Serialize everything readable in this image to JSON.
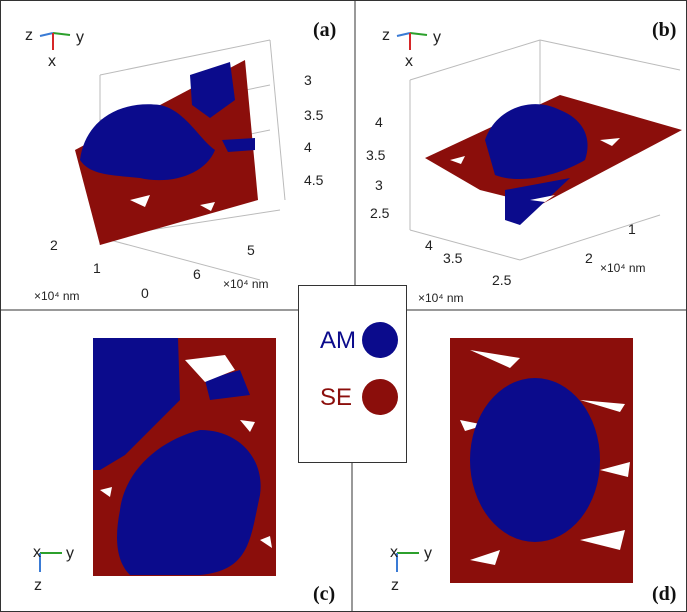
{
  "panels": [
    {
      "label": "(a)",
      "triad": [
        "z",
        "y",
        "x"
      ],
      "ticks": [
        "3",
        "3.5",
        "4",
        "4.5",
        "2",
        "1",
        "0",
        "6",
        "5"
      ],
      "units": [
        "×10⁴ nm",
        "×10⁴ nm"
      ]
    },
    {
      "label": "(b)",
      "triad": [
        "z",
        "y",
        "x"
      ],
      "ticks": [
        "4",
        "3.5",
        "3",
        "2.5",
        "4",
        "3.5",
        "2.5",
        "2",
        "1"
      ],
      "units": [
        "×10⁴ nm",
        "×10⁴ nm"
      ]
    },
    {
      "label": "(c)",
      "triad": [
        "x",
        "y",
        "z"
      ]
    },
    {
      "label": "(d)",
      "triad": [
        "x",
        "y",
        "z"
      ]
    }
  ],
  "legend": {
    "items": [
      {
        "label": "AM"
      },
      {
        "label": "SE"
      }
    ]
  }
}
